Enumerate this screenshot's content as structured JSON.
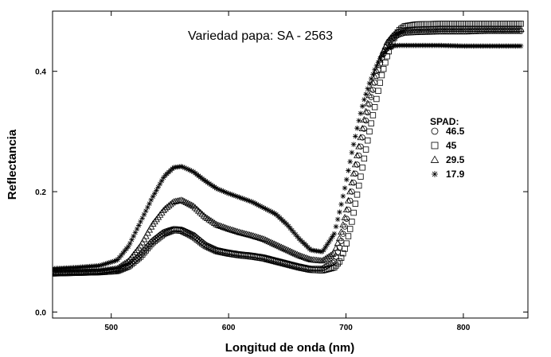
{
  "chart_data": {
    "type": "scatter",
    "title": "Variedad papa: SA - 2563",
    "xlabel": "Longitud de onda (nm)",
    "ylabel": "Reflectancia",
    "xlim": [
      450,
      855
    ],
    "ylim": [
      -0.01,
      0.5
    ],
    "xticks": [
      500,
      600,
      700,
      800
    ],
    "yticks": [
      0.0,
      0.2,
      0.4
    ],
    "xtick_labels": [
      "500",
      "600",
      "700",
      "800"
    ],
    "ytick_labels": [
      "0.0",
      "0.2",
      "0.4"
    ],
    "grid": false,
    "legend_title": "SPAD:",
    "legend_position": "right",
    "series": [
      {
        "name": "46.5",
        "marker": "circle",
        "points": [
          [
            450,
            0.065
          ],
          [
            470,
            0.066
          ],
          [
            490,
            0.067
          ],
          [
            505,
            0.07
          ],
          [
            515,
            0.078
          ],
          [
            525,
            0.095
          ],
          [
            535,
            0.118
          ],
          [
            545,
            0.133
          ],
          [
            553,
            0.138
          ],
          [
            560,
            0.137
          ],
          [
            570,
            0.128
          ],
          [
            580,
            0.112
          ],
          [
            590,
            0.103
          ],
          [
            600,
            0.099
          ],
          [
            610,
            0.096
          ],
          [
            620,
            0.094
          ],
          [
            630,
            0.091
          ],
          [
            640,
            0.086
          ],
          [
            650,
            0.081
          ],
          [
            660,
            0.076
          ],
          [
            670,
            0.072
          ],
          [
            680,
            0.072
          ],
          [
            690,
            0.084
          ],
          [
            695,
            0.11
          ],
          [
            700,
            0.15
          ],
          [
            705,
            0.2
          ],
          [
            710,
            0.25
          ],
          [
            715,
            0.3
          ],
          [
            720,
            0.345
          ],
          [
            725,
            0.385
          ],
          [
            730,
            0.42
          ],
          [
            735,
            0.442
          ],
          [
            740,
            0.455
          ],
          [
            745,
            0.461
          ],
          [
            750,
            0.464
          ],
          [
            760,
            0.465
          ],
          [
            780,
            0.466
          ],
          [
            800,
            0.466
          ],
          [
            820,
            0.467
          ],
          [
            840,
            0.467
          ],
          [
            850,
            0.467
          ]
        ]
      },
      {
        "name": "45",
        "marker": "square",
        "points": [
          [
            450,
            0.064
          ],
          [
            470,
            0.065
          ],
          [
            490,
            0.066
          ],
          [
            505,
            0.068
          ],
          [
            515,
            0.076
          ],
          [
            525,
            0.092
          ],
          [
            535,
            0.115
          ],
          [
            545,
            0.13
          ],
          [
            553,
            0.136
          ],
          [
            560,
            0.135
          ],
          [
            570,
            0.125
          ],
          [
            580,
            0.11
          ],
          [
            590,
            0.101
          ],
          [
            600,
            0.097
          ],
          [
            610,
            0.094
          ],
          [
            620,
            0.092
          ],
          [
            630,
            0.089
          ],
          [
            640,
            0.084
          ],
          [
            650,
            0.079
          ],
          [
            660,
            0.074
          ],
          [
            670,
            0.07
          ],
          [
            680,
            0.069
          ],
          [
            690,
            0.074
          ],
          [
            695,
            0.085
          ],
          [
            700,
            0.11
          ],
          [
            705,
            0.15
          ],
          [
            710,
            0.2
          ],
          [
            715,
            0.25
          ],
          [
            720,
            0.3
          ],
          [
            725,
            0.345
          ],
          [
            730,
            0.39
          ],
          [
            735,
            0.425
          ],
          [
            740,
            0.452
          ],
          [
            745,
            0.468
          ],
          [
            750,
            0.475
          ],
          [
            760,
            0.478
          ],
          [
            780,
            0.479
          ],
          [
            800,
            0.479
          ],
          [
            820,
            0.479
          ],
          [
            840,
            0.479
          ],
          [
            850,
            0.479
          ]
        ]
      },
      {
        "name": "29.5",
        "marker": "triangle",
        "points": [
          [
            450,
            0.066
          ],
          [
            470,
            0.067
          ],
          [
            490,
            0.068
          ],
          [
            505,
            0.072
          ],
          [
            515,
            0.085
          ],
          [
            525,
            0.11
          ],
          [
            535,
            0.145
          ],
          [
            545,
            0.17
          ],
          [
            553,
            0.183
          ],
          [
            560,
            0.186
          ],
          [
            570,
            0.176
          ],
          [
            580,
            0.158
          ],
          [
            590,
            0.145
          ],
          [
            600,
            0.138
          ],
          [
            610,
            0.132
          ],
          [
            620,
            0.127
          ],
          [
            630,
            0.121
          ],
          [
            640,
            0.112
          ],
          [
            650,
            0.103
          ],
          [
            660,
            0.094
          ],
          [
            670,
            0.087
          ],
          [
            680,
            0.085
          ],
          [
            690,
            0.098
          ],
          [
            695,
            0.125
          ],
          [
            700,
            0.165
          ],
          [
            705,
            0.215
          ],
          [
            710,
            0.265
          ],
          [
            715,
            0.315
          ],
          [
            720,
            0.36
          ],
          [
            725,
            0.395
          ],
          [
            730,
            0.425
          ],
          [
            735,
            0.448
          ],
          [
            740,
            0.46
          ],
          [
            745,
            0.466
          ],
          [
            750,
            0.468
          ],
          [
            760,
            0.469
          ],
          [
            780,
            0.47
          ],
          [
            800,
            0.47
          ],
          [
            820,
            0.47
          ],
          [
            840,
            0.47
          ],
          [
            850,
            0.47
          ]
        ]
      },
      {
        "name": "17.9",
        "marker": "star",
        "points": [
          [
            450,
            0.072
          ],
          [
            470,
            0.074
          ],
          [
            490,
            0.077
          ],
          [
            505,
            0.086
          ],
          [
            515,
            0.11
          ],
          [
            525,
            0.15
          ],
          [
            535,
            0.19
          ],
          [
            545,
            0.225
          ],
          [
            553,
            0.24
          ],
          [
            560,
            0.242
          ],
          [
            570,
            0.233
          ],
          [
            580,
            0.218
          ],
          [
            590,
            0.205
          ],
          [
            600,
            0.197
          ],
          [
            610,
            0.19
          ],
          [
            620,
            0.183
          ],
          [
            630,
            0.173
          ],
          [
            640,
            0.163
          ],
          [
            650,
            0.145
          ],
          [
            660,
            0.122
          ],
          [
            670,
            0.103
          ],
          [
            680,
            0.1
          ],
          [
            690,
            0.13
          ],
          [
            695,
            0.17
          ],
          [
            700,
            0.215
          ],
          [
            705,
            0.265
          ],
          [
            710,
            0.31
          ],
          [
            715,
            0.35
          ],
          [
            720,
            0.38
          ],
          [
            725,
            0.405
          ],
          [
            730,
            0.425
          ],
          [
            735,
            0.437
          ],
          [
            740,
            0.442
          ],
          [
            745,
            0.443
          ],
          [
            750,
            0.443
          ],
          [
            760,
            0.443
          ],
          [
            780,
            0.443
          ],
          [
            800,
            0.442
          ],
          [
            820,
            0.442
          ],
          [
            840,
            0.442
          ],
          [
            850,
            0.442
          ]
        ]
      }
    ]
  }
}
